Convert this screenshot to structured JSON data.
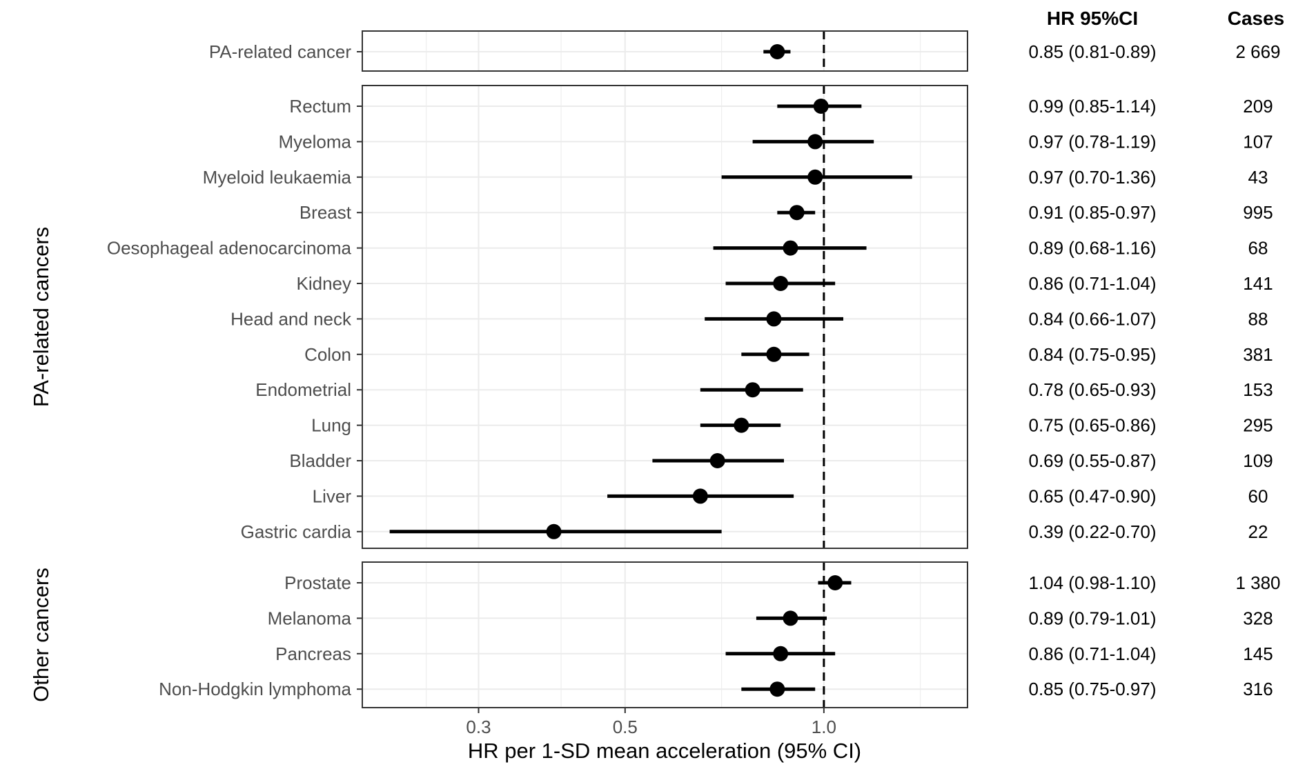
{
  "chart_data": {
    "type": "forest",
    "xlabel": "HR per 1-SD mean acceleration (95% CI)",
    "x_scale": "log",
    "xlim": [
      0.2,
      1.65
    ],
    "x_ticks": [
      {
        "value": 0.3,
        "label": "0.3"
      },
      {
        "value": 0.5,
        "label": "0.5"
      },
      {
        "value": 1.0,
        "label": "1.0"
      }
    ],
    "minor_gridlines": [
      0.25,
      0.4,
      0.7,
      1.4
    ],
    "reference_line": 1.0,
    "columns": {
      "hr_header": "HR 95%CI",
      "cases_header": "Cases"
    },
    "panels": [
      {
        "label": "",
        "rows": [
          {
            "name": "PA-related cancer",
            "hr": 0.85,
            "lo": 0.81,
            "hi": 0.89,
            "hr_text": "0.85 (0.81-0.89)",
            "cases": "2 669",
            "point_size": 11
          }
        ]
      },
      {
        "label": "PA-related cancers",
        "rows": [
          {
            "name": "Rectum",
            "hr": 0.99,
            "lo": 0.85,
            "hi": 1.14,
            "hr_text": "0.99 (0.85-1.14)",
            "cases": "209",
            "point_size": 11
          },
          {
            "name": "Myeloma",
            "hr": 0.97,
            "lo": 0.78,
            "hi": 1.19,
            "hr_text": "0.97 (0.78-1.19)",
            "cases": "107",
            "point_size": 11
          },
          {
            "name": "Myeloid leukaemia",
            "hr": 0.97,
            "lo": 0.7,
            "hi": 1.36,
            "hr_text": "0.97 (0.70-1.36)",
            "cases": "43",
            "point_size": 11
          },
          {
            "name": "Breast",
            "hr": 0.91,
            "lo": 0.85,
            "hi": 0.97,
            "hr_text": "0.91 (0.85-0.97)",
            "cases": "995",
            "point_size": 11
          },
          {
            "name": "Oesophageal adenocarcinoma",
            "hr": 0.89,
            "lo": 0.68,
            "hi": 1.16,
            "hr_text": "0.89 (0.68-1.16)",
            "cases": "68",
            "point_size": 11
          },
          {
            "name": "Kidney",
            "hr": 0.86,
            "lo": 0.71,
            "hi": 1.04,
            "hr_text": "0.86 (0.71-1.04)",
            "cases": "141",
            "point_size": 11
          },
          {
            "name": "Head and neck",
            "hr": 0.84,
            "lo": 0.66,
            "hi": 1.07,
            "hr_text": "0.84 (0.66-1.07)",
            "cases": "88",
            "point_size": 11
          },
          {
            "name": "Colon",
            "hr": 0.84,
            "lo": 0.75,
            "hi": 0.95,
            "hr_text": "0.84 (0.75-0.95)",
            "cases": "381",
            "point_size": 11
          },
          {
            "name": "Endometrial",
            "hr": 0.78,
            "lo": 0.65,
            "hi": 0.93,
            "hr_text": "0.78 (0.65-0.93)",
            "cases": "153",
            "point_size": 11
          },
          {
            "name": "Lung",
            "hr": 0.75,
            "lo": 0.65,
            "hi": 0.86,
            "hr_text": "0.75 (0.65-0.86)",
            "cases": "295",
            "point_size": 11
          },
          {
            "name": "Bladder",
            "hr": 0.69,
            "lo": 0.55,
            "hi": 0.87,
            "hr_text": "0.69 (0.55-0.87)",
            "cases": "109",
            "point_size": 11
          },
          {
            "name": "Liver",
            "hr": 0.65,
            "lo": 0.47,
            "hi": 0.9,
            "hr_text": "0.65 (0.47-0.90)",
            "cases": "60",
            "point_size": 11
          },
          {
            "name": "Gastric cardia",
            "hr": 0.39,
            "lo": 0.22,
            "hi": 0.7,
            "hr_text": "0.39 (0.22-0.70)",
            "cases": "22",
            "point_size": 11
          }
        ]
      },
      {
        "label": "Other cancers",
        "rows": [
          {
            "name": "Prostate",
            "hr": 1.04,
            "lo": 0.98,
            "hi": 1.1,
            "hr_text": "1.04 (0.98-1.10)",
            "cases": "1 380",
            "point_size": 11
          },
          {
            "name": "Melanoma",
            "hr": 0.89,
            "lo": 0.79,
            "hi": 1.01,
            "hr_text": "0.89 (0.79-1.01)",
            "cases": "328",
            "point_size": 11
          },
          {
            "name": "Pancreas",
            "hr": 0.86,
            "lo": 0.71,
            "hi": 1.04,
            "hr_text": "0.86 (0.71-1.04)",
            "cases": "145",
            "point_size": 11
          },
          {
            "name": "Non-Hodgkin lymphoma",
            "hr": 0.85,
            "lo": 0.75,
            "hi": 0.97,
            "hr_text": "0.85 (0.75-0.97)",
            "cases": "316",
            "point_size": 11
          }
        ]
      }
    ],
    "colors": {
      "point": "#000000",
      "grid": "#ebebeb",
      "panel_border": "#333333",
      "text": "#4d4d4d",
      "reference": "#000000"
    }
  }
}
